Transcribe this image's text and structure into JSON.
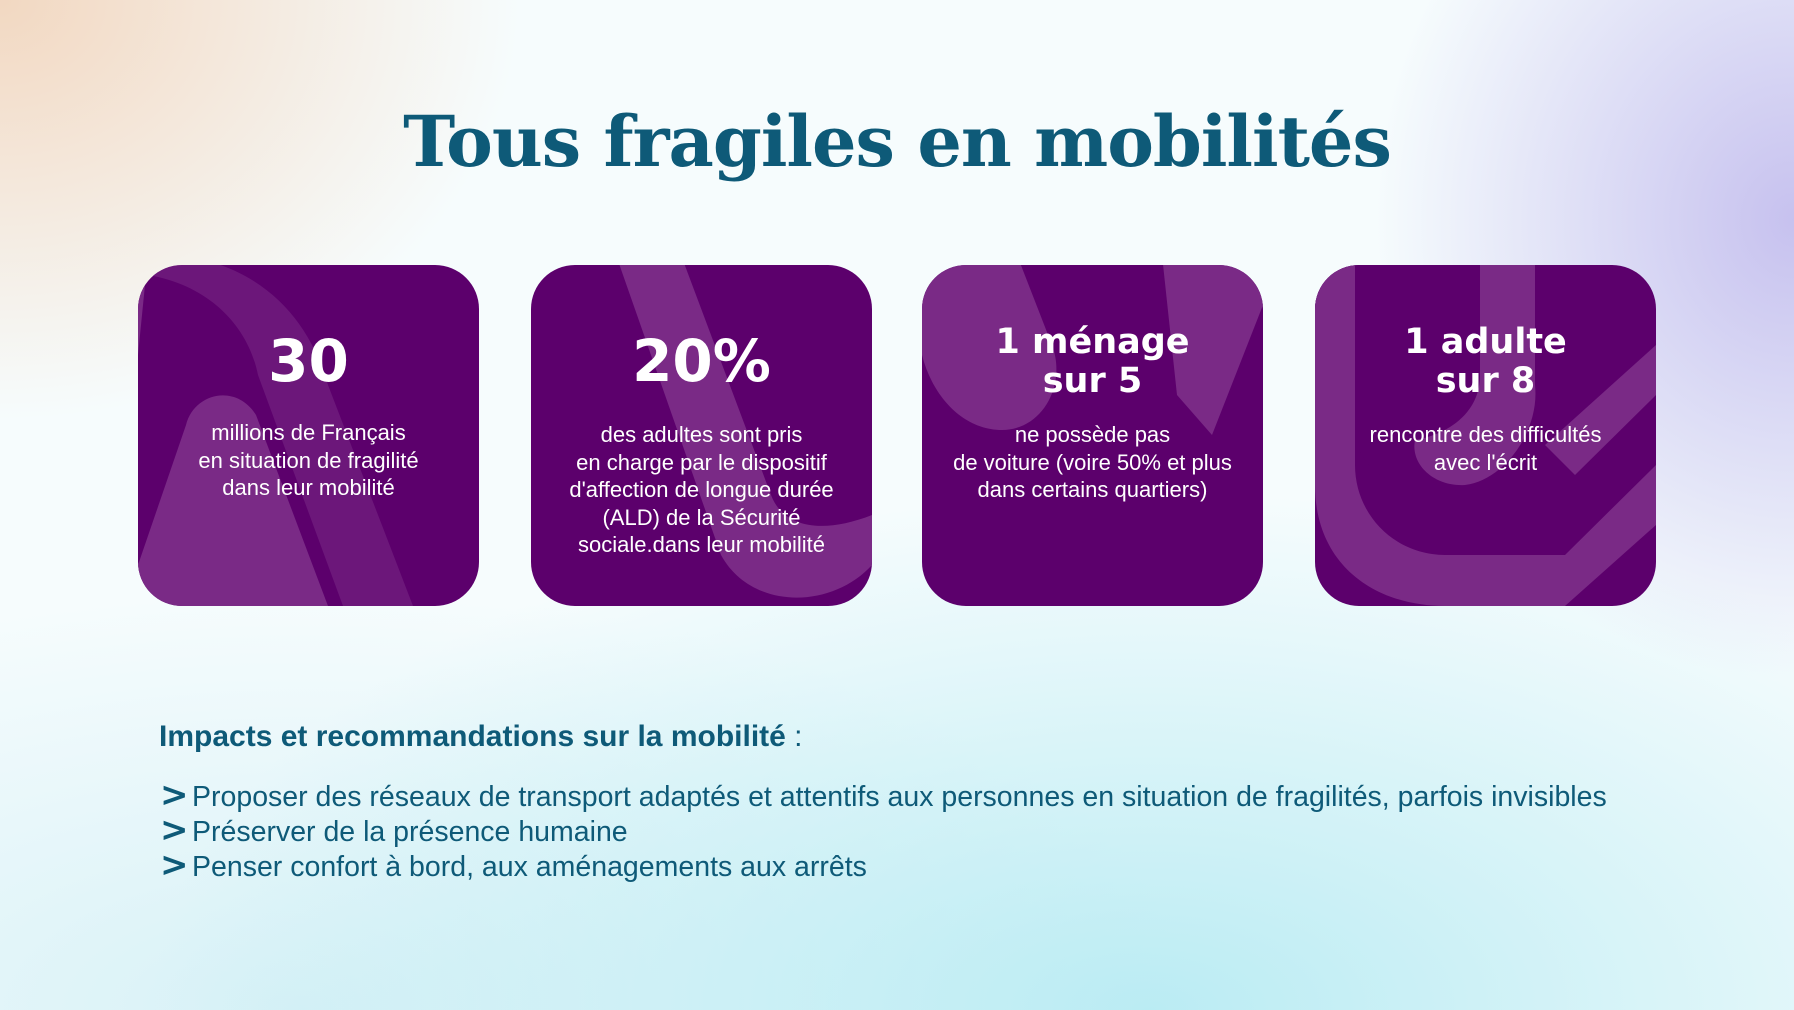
{
  "page": {
    "title": "Tous fragiles en mobilités"
  },
  "colors": {
    "title": "#0e5a78",
    "card_background": "#5c006c",
    "card_decoration": "#7a2a86",
    "card_text": "#ffffff"
  },
  "cards": [
    {
      "headline": "30",
      "description": "millions de Français\nen situation de fragilité\ndans leur mobilité"
    },
    {
      "headline": "20%",
      "description": "des adultes sont pris\nen charge par le dispositif\nd'affection de longue durée\n(ALD) de la Sécurité\nsociale.dans leur mobilité"
    },
    {
      "headline_line1": "1 ménage",
      "headline_line2": "sur 5",
      "description": "ne possède pas\nde voiture (voire 50% et plus\ndans certains quartiers)"
    },
    {
      "headline_line1": "1 adulte",
      "headline_line2": "sur 8",
      "description": "rencontre des difficultés\navec l'écrit"
    }
  ],
  "impacts": {
    "title": "Impacts et recommandations sur la mobilité",
    "colon": " :",
    "bullet_icon": "chevron-right-icon",
    "bullet_glyph": ">",
    "items": [
      "Proposer des réseaux de transport adaptés et attentifs aux personnes en situation de fragilités, parfois invisibles",
      "Préserver de la présence humaine",
      "Penser confort à bord, aux aménagements aux arrêts"
    ]
  }
}
